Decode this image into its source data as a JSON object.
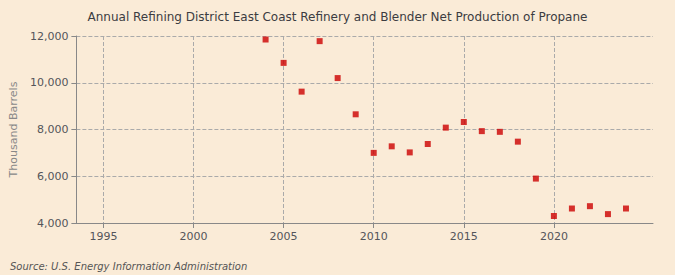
{
  "chart_data": {
    "type": "scatter",
    "title": "Annual Refining District East Coast Refinery and Blender Net Production of Propane",
    "ylabel": "Thousand Barrels",
    "annotations": [
      "Source: U.S. Energy Information Administration"
    ],
    "x": [
      2004,
      2005,
      2006,
      2007,
      2008,
      2009,
      2010,
      2011,
      2012,
      2013,
      2014,
      2015,
      2016,
      2017,
      2018,
      2019,
      2020,
      2021,
      2022,
      2023,
      2024
    ],
    "values": [
      11850,
      10850,
      9620,
      11780,
      10200,
      8650,
      7000,
      7280,
      7020,
      7380,
      8080,
      8320,
      7930,
      7900,
      7480,
      5900,
      4300,
      4620,
      4720,
      4380,
      4620
    ],
    "color": "#cc0000",
    "marker": "square",
    "xlim": [
      1993.5,
      2025.5
    ],
    "xticks": [
      1995,
      2000,
      2005,
      2010,
      2015,
      2020
    ],
    "ylim": [
      4000,
      12000
    ],
    "yticks": [
      {
        "value": 4000,
        "label": "4,000"
      },
      {
        "value": 6000,
        "label": "6,000"
      },
      {
        "value": 8000,
        "label": "8,000"
      },
      {
        "value": 10000,
        "label": "10,000"
      },
      {
        "value": 12000,
        "label": "12,000"
      }
    ],
    "grid": true
  }
}
